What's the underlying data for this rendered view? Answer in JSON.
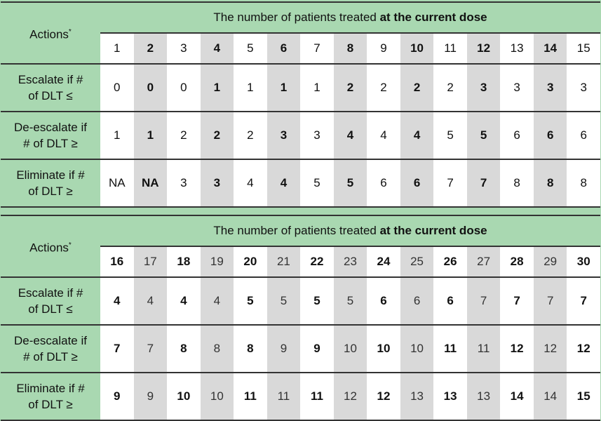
{
  "header_title_prefix": "The number of patients treated ",
  "header_title_bold": "at the current dose",
  "actions_label": "Actions",
  "actions_footnote_mark": "*",
  "row_labels": [
    [
      "Escalate if #",
      "of DLT ≤"
    ],
    [
      "De-escalate if",
      "# of DLT ≥"
    ],
    [
      "Eliminate if #",
      "of DLT ≥"
    ]
  ],
  "colors": {
    "header_green": "#a9d8b1",
    "shade_gray": "#d9d9d9"
  },
  "tables": [
    {
      "patients": [
        "1",
        "2",
        "3",
        "4",
        "5",
        "6",
        "7",
        "8",
        "9",
        "10",
        "11",
        "12",
        "13",
        "14",
        "15"
      ],
      "escalate": [
        "0",
        "0",
        "0",
        "1",
        "1",
        "1",
        "1",
        "2",
        "2",
        "2",
        "2",
        "3",
        "3",
        "3",
        "3"
      ],
      "deescalate": [
        "1",
        "1",
        "2",
        "2",
        "2",
        "3",
        "3",
        "4",
        "4",
        "4",
        "5",
        "5",
        "6",
        "6",
        "6"
      ],
      "eliminate": [
        "NA",
        "NA",
        "3",
        "3",
        "4",
        "4",
        "5",
        "5",
        "6",
        "6",
        "7",
        "7",
        "8",
        "8",
        "8"
      ],
      "bold_columns": [
        "2",
        "4",
        "6",
        "8",
        "10",
        "12",
        "14"
      ],
      "shaded_columns": [
        "2",
        "4",
        "6",
        "8",
        "10",
        "12",
        "14"
      ]
    },
    {
      "patients": [
        "16",
        "17",
        "18",
        "19",
        "20",
        "21",
        "22",
        "23",
        "24",
        "25",
        "26",
        "27",
        "28",
        "29",
        "30"
      ],
      "escalate": [
        "4",
        "4",
        "4",
        "4",
        "5",
        "5",
        "5",
        "5",
        "6",
        "6",
        "6",
        "7",
        "7",
        "7",
        "7"
      ],
      "deescalate": [
        "7",
        "7",
        "8",
        "8",
        "8",
        "9",
        "9",
        "10",
        "10",
        "10",
        "11",
        "11",
        "12",
        "12",
        "12"
      ],
      "eliminate": [
        "9",
        "9",
        "10",
        "10",
        "11",
        "11",
        "11",
        "12",
        "12",
        "13",
        "13",
        "13",
        "14",
        "14",
        "15"
      ],
      "bold_columns": [
        "16",
        "18",
        "20",
        "22",
        "24",
        "26",
        "28",
        "30"
      ],
      "shaded_columns": [
        "17",
        "19",
        "21",
        "23",
        "25",
        "27",
        "29"
      ]
    }
  ]
}
